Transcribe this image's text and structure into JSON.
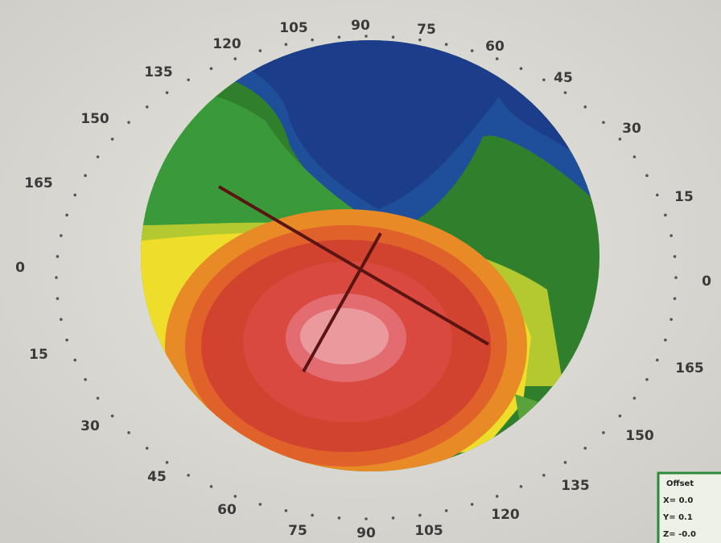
{
  "axis_labels": [
    "120",
    "105",
    "90",
    "75",
    "60",
    "45",
    "30",
    "15",
    "0",
    "165",
    "150",
    "135",
    "120",
    "105",
    "90",
    "75",
    "60",
    "45",
    "30",
    "15",
    "0",
    "165",
    "150",
    "135"
  ],
  "legend_box": {
    "heading": "Offset",
    "rows": [
      "X= 0.0",
      "Y= 0.1",
      "Z= -0.0"
    ]
  }
}
